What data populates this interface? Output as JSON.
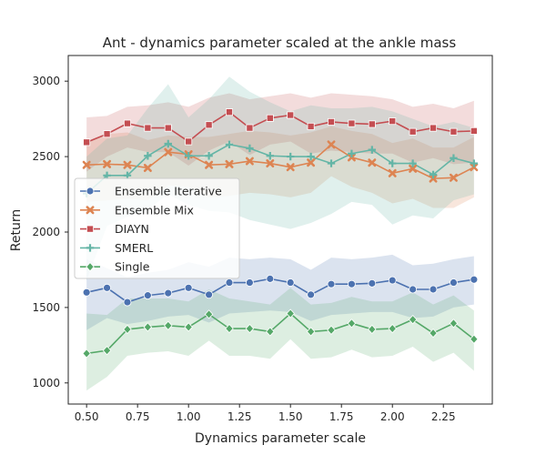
{
  "chart_data": {
    "type": "line",
    "title": "Ant - dynamics parameter scaled at the ankle mass",
    "xlabel": "Dynamics parameter scale",
    "ylabel": "Return",
    "xlim": [
      0.41,
      2.49
    ],
    "ylim": [
      860,
      3170
    ],
    "xticks": [
      0.5,
      0.75,
      1.0,
      1.25,
      1.5,
      1.75,
      2.0,
      2.25
    ],
    "xtick_labels": [
      "0.50",
      "0.75",
      "1.00",
      "1.25",
      "1.50",
      "1.75",
      "2.00",
      "2.25"
    ],
    "yticks": [
      1000,
      1500,
      2000,
      2500,
      3000
    ],
    "ytick_labels": [
      "1000",
      "1500",
      "2000",
      "2500",
      "3000"
    ],
    "grid": false,
    "legend_position": "center-left",
    "x": [
      0.5,
      0.6,
      0.7,
      0.8,
      0.9,
      1.0,
      1.1,
      1.2,
      1.3,
      1.4,
      1.5,
      1.6,
      1.7,
      1.8,
      1.9,
      2.0,
      2.1,
      2.2,
      2.3,
      2.4
    ],
    "series": [
      {
        "name": "Ensemble Iterative",
        "color": "#4c72b0",
        "marker": "circle",
        "values": [
          1600,
          1630,
          1535,
          1580,
          1595,
          1630,
          1585,
          1665,
          1665,
          1690,
          1665,
          1585,
          1655,
          1655,
          1660,
          1680,
          1620,
          1620,
          1665,
          1685
        ],
        "lower": [
          1350,
          1430,
          1390,
          1410,
          1440,
          1450,
          1400,
          1460,
          1470,
          1480,
          1470,
          1410,
          1450,
          1460,
          1470,
          1470,
          1430,
          1440,
          1500,
          1520
        ],
        "upper": [
          1820,
          1760,
          1700,
          1730,
          1750,
          1800,
          1770,
          1830,
          1820,
          1830,
          1820,
          1750,
          1830,
          1820,
          1830,
          1850,
          1780,
          1790,
          1820,
          1840
        ]
      },
      {
        "name": "Ensemble Mix",
        "color": "#dd8452",
        "marker": "x",
        "values": [
          2445,
          2450,
          2445,
          2425,
          2530,
          2515,
          2445,
          2450,
          2470,
          2455,
          2430,
          2460,
          2580,
          2495,
          2460,
          2390,
          2420,
          2355,
          2360,
          2430
        ],
        "lower": [
          2200,
          2210,
          2220,
          2210,
          2310,
          2300,
          2230,
          2240,
          2260,
          2250,
          2230,
          2260,
          2370,
          2300,
          2260,
          2190,
          2220,
          2160,
          2160,
          2230
        ],
        "upper": [
          2600,
          2650,
          2660,
          2610,
          2640,
          2630,
          2630,
          2650,
          2670,
          2660,
          2640,
          2660,
          2700,
          2670,
          2650,
          2590,
          2620,
          2560,
          2560,
          2630
        ]
      },
      {
        "name": "DIAYN",
        "color": "#c44e52",
        "marker": "square",
        "values": [
          2595,
          2650,
          2720,
          2690,
          2690,
          2600,
          2710,
          2795,
          2690,
          2755,
          2775,
          2700,
          2730,
          2720,
          2715,
          2735,
          2665,
          2690,
          2665,
          2670
        ],
        "lower": [
          2400,
          2500,
          2560,
          2530,
          2530,
          2440,
          2540,
          2600,
          2510,
          2580,
          2600,
          2520,
          2540,
          2530,
          2520,
          2520,
          2460,
          2490,
          2450,
          2460
        ],
        "upper": [
          2760,
          2770,
          2830,
          2840,
          2860,
          2830,
          2890,
          2920,
          2880,
          2900,
          2920,
          2890,
          2920,
          2910,
          2900,
          2880,
          2830,
          2850,
          2820,
          2870
        ]
      },
      {
        "name": "SMERL",
        "color": "#64b5a6",
        "marker": "plus",
        "values": [
          2255,
          2375,
          2375,
          2505,
          2585,
          2505,
          2505,
          2580,
          2555,
          2505,
          2500,
          2500,
          2455,
          2520,
          2545,
          2455,
          2455,
          2380,
          2490,
          2455
        ],
        "lower": [
          1680,
          2040,
          2100,
          2150,
          2250,
          2180,
          2140,
          2130,
          2080,
          2050,
          2020,
          2060,
          2120,
          2200,
          2180,
          2050,
          2110,
          2090,
          2210,
          2250
        ],
        "upper": [
          2500,
          2620,
          2640,
          2820,
          2980,
          2760,
          2880,
          3030,
          2930,
          2860,
          2800,
          2840,
          2820,
          2820,
          2830,
          2800,
          2750,
          2700,
          2730,
          2690
        ]
      },
      {
        "name": "Single",
        "color": "#55a868",
        "marker": "diamond",
        "values": [
          1195,
          1215,
          1355,
          1370,
          1380,
          1370,
          1455,
          1360,
          1360,
          1340,
          1460,
          1340,
          1350,
          1395,
          1355,
          1360,
          1420,
          1330,
          1395,
          1290
        ],
        "lower": [
          950,
          1040,
          1180,
          1200,
          1210,
          1180,
          1280,
          1180,
          1180,
          1160,
          1290,
          1160,
          1170,
          1220,
          1170,
          1180,
          1240,
          1140,
          1200,
          1080
        ],
        "upper": [
          1460,
          1450,
          1560,
          1560,
          1560,
          1540,
          1620,
          1560,
          1540,
          1520,
          1630,
          1520,
          1530,
          1570,
          1540,
          1540,
          1600,
          1520,
          1580,
          1480
        ]
      }
    ]
  }
}
